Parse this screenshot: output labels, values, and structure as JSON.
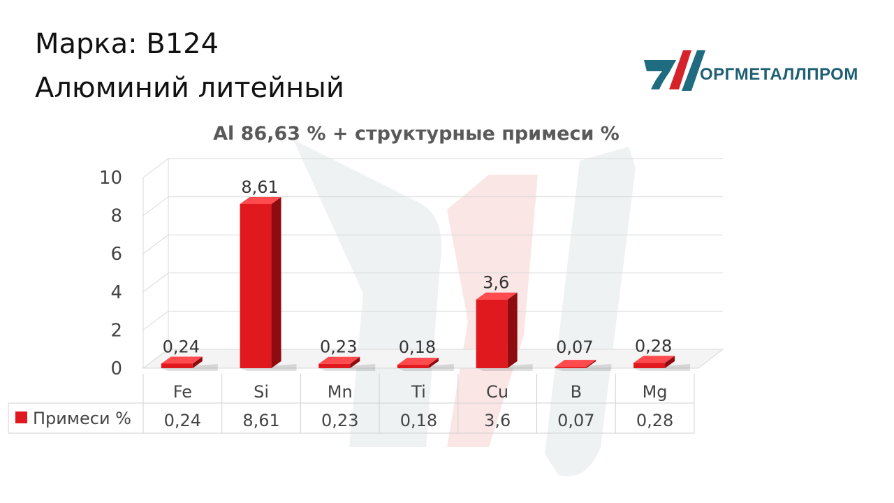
{
  "header": {
    "line1": "Марка: В124",
    "line2": "Алюминий литейный"
  },
  "logo": {
    "text": "ОРГМЕТАЛЛПРОМ",
    "icon": "company-logo-icon"
  },
  "colors": {
    "bar_front": "#e0191e",
    "bar_side": "#8e0c10",
    "bar_top": "#ff4a4e",
    "logo_red": "#d4232b",
    "logo_teal": "#1f6b80",
    "grid": "#d9d9d9",
    "watermark_teal": "#eef2f3",
    "watermark_red": "#fbe6e6"
  },
  "chart_data": {
    "type": "bar",
    "title": "Al 86,63 % + структурные примеси %",
    "categories": [
      "Fe",
      "Si",
      "Mn",
      "Ti",
      "Cu",
      "B",
      "Mg"
    ],
    "series": [
      {
        "name": "Примеси %",
        "values": [
          0.24,
          8.61,
          0.23,
          0.18,
          3.6,
          0.07,
          0.28
        ],
        "labels": [
          "0,24",
          "8,61",
          "0,23",
          "0,18",
          "3,6",
          "0,07",
          "0,28"
        ]
      }
    ],
    "yticks": [
      "0",
      "2",
      "4",
      "6",
      "8",
      "10"
    ],
    "ylim": [
      0,
      10
    ],
    "grid": true,
    "legend": "data-table-left",
    "data_table": true
  }
}
